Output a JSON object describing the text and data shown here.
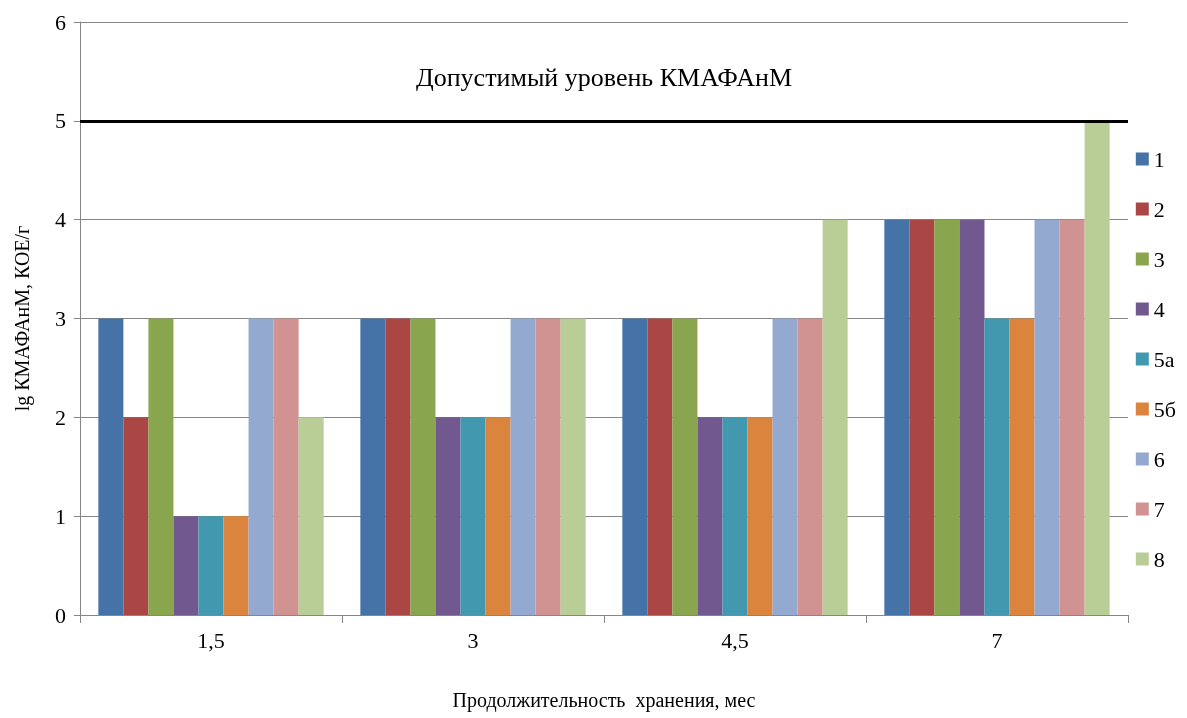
{
  "chart_data": {
    "type": "bar",
    "xlabel": "Продолжительность  хранения, мес",
    "ylabel": "lg КМАФАнМ, КОЕ/г",
    "categories": [
      "1,5",
      "3",
      "4,5",
      "7"
    ],
    "series": [
      {
        "name": "1",
        "color": "#4572a7",
        "values": [
          3,
          3,
          3,
          4
        ]
      },
      {
        "name": "2",
        "color": "#aa4643",
        "values": [
          2,
          3,
          3,
          4
        ]
      },
      {
        "name": "3",
        "color": "#89a54e",
        "values": [
          3,
          3,
          3,
          4
        ]
      },
      {
        "name": "4",
        "color": "#71588f",
        "values": [
          1,
          2,
          2,
          4
        ]
      },
      {
        "name": "5а",
        "color": "#4198af",
        "values": [
          1,
          2,
          2,
          3
        ]
      },
      {
        "name": "5б",
        "color": "#db843d",
        "values": [
          1,
          2,
          2,
          3
        ]
      },
      {
        "name": "6",
        "color": "#93a9cf",
        "values": [
          3,
          3,
          3,
          4
        ]
      },
      {
        "name": "7",
        "color": "#d19392",
        "values": [
          3,
          3,
          3,
          4
        ]
      },
      {
        "name": "8",
        "color": "#b9cd96",
        "values": [
          2,
          3,
          4,
          5
        ]
      }
    ],
    "ylim": [
      0,
      6
    ],
    "yticks": [
      0,
      1,
      2,
      3,
      4,
      5,
      6
    ],
    "grid": "y",
    "legend": "right",
    "ref_lines": [
      {
        "axis": "y",
        "value": 5,
        "label": "Допустимый уровень КМАФАнМ",
        "color": "#000000"
      }
    ]
  }
}
